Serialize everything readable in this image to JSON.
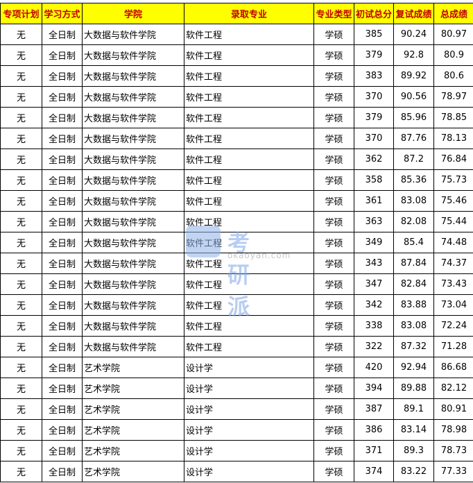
{
  "headers": [
    "专项计划",
    "学习方式",
    "学院",
    "录取专业",
    "专业类型",
    "初试总分",
    "复试成绩",
    "总成绩"
  ],
  "rows": [
    [
      "无",
      "全日制",
      "大数据与软件学院",
      "软件工程",
      "学硕",
      "385",
      "90.24",
      "80.97"
    ],
    [
      "无",
      "全日制",
      "大数据与软件学院",
      "软件工程",
      "学硕",
      "379",
      "92.8",
      "80.9"
    ],
    [
      "无",
      "全日制",
      "大数据与软件学院",
      "软件工程",
      "学硕",
      "383",
      "89.92",
      "80.6"
    ],
    [
      "无",
      "全日制",
      "大数据与软件学院",
      "软件工程",
      "学硕",
      "370",
      "90.56",
      "78.97"
    ],
    [
      "无",
      "全日制",
      "大数据与软件学院",
      "软件工程",
      "学硕",
      "379",
      "85.96",
      "78.85"
    ],
    [
      "无",
      "全日制",
      "大数据与软件学院",
      "软件工程",
      "学硕",
      "370",
      "87.76",
      "78.13"
    ],
    [
      "无",
      "全日制",
      "大数据与软件学院",
      "软件工程",
      "学硕",
      "362",
      "87.2",
      "76.84"
    ],
    [
      "无",
      "全日制",
      "大数据与软件学院",
      "软件工程",
      "学硕",
      "358",
      "85.36",
      "75.73"
    ],
    [
      "无",
      "全日制",
      "大数据与软件学院",
      "软件工程",
      "学硕",
      "361",
      "83.08",
      "75.46"
    ],
    [
      "无",
      "全日制",
      "大数据与软件学院",
      "软件工程",
      "学硕",
      "363",
      "82.08",
      "75.44"
    ],
    [
      "无",
      "全日制",
      "大数据与软件学院",
      "软件工程",
      "学硕",
      "349",
      "85.4",
      "74.48"
    ],
    [
      "无",
      "全日制",
      "大数据与软件学院",
      "软件工程",
      "学硕",
      "343",
      "87.84",
      "74.37"
    ],
    [
      "无",
      "全日制",
      "大数据与软件学院",
      "软件工程",
      "学硕",
      "347",
      "82.84",
      "73.43"
    ],
    [
      "无",
      "全日制",
      "大数据与软件学院",
      "软件工程",
      "学硕",
      "342",
      "83.88",
      "73.04"
    ],
    [
      "无",
      "全日制",
      "大数据与软件学院",
      "软件工程",
      "学硕",
      "338",
      "83.08",
      "72.24"
    ],
    [
      "无",
      "全日制",
      "大数据与软件学院",
      "软件工程",
      "学硕",
      "322",
      "87.32",
      "71.28"
    ],
    [
      "无",
      "全日制",
      "艺术学院",
      "设计学",
      "学硕",
      "420",
      "92.94",
      "86.68"
    ],
    [
      "无",
      "全日制",
      "艺术学院",
      "设计学",
      "学硕",
      "394",
      "89.88",
      "82.12"
    ],
    [
      "无",
      "全日制",
      "艺术学院",
      "设计学",
      "学硕",
      "387",
      "89.1",
      "80.91"
    ],
    [
      "无",
      "全日制",
      "艺术学院",
      "设计学",
      "学硕",
      "386",
      "83.14",
      "78.98"
    ],
    [
      "无",
      "全日制",
      "艺术学院",
      "设计学",
      "学硕",
      "371",
      "89.3",
      "78.73"
    ],
    [
      "无",
      "全日制",
      "艺术学院",
      "设计学",
      "学硕",
      "374",
      "83.22",
      "77.33"
    ]
  ],
  "watermark": {
    "title": "考研派",
    "url": "okaoyan.com"
  },
  "colors": {
    "header_bg": "#ffff00",
    "header_text": "#c00000"
  }
}
